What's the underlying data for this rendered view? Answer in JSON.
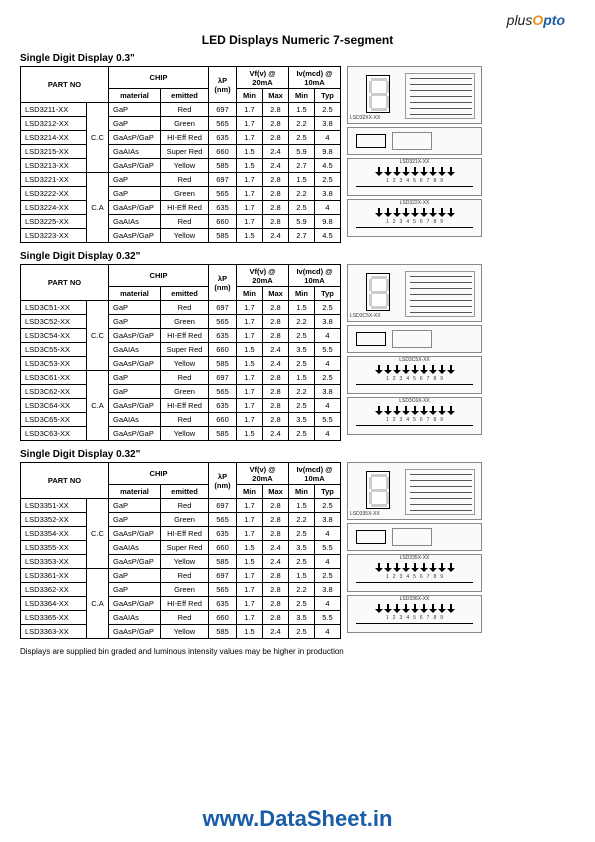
{
  "logo": {
    "plus": "plus",
    "o": "O",
    "pto": "pto"
  },
  "main_title": "LED Displays Numeric 7-segment",
  "headers": {
    "part_no": "PART NO",
    "chip": "CHIP",
    "lp": "λP (nm)",
    "vf": "Vf(v) @ 20mA",
    "iv": "Iv(mcd) @ 10mA",
    "material": "material",
    "emitted": "emitted",
    "min": "Min",
    "max": "Max",
    "typ": "Typ"
  },
  "sections": [
    {
      "title": "Single Digit Display 0.3\"",
      "groups": [
        {
          "cc": "C.C",
          "rows": [
            {
              "pn": "LSD3211-XX",
              "mat": "GaP",
              "emit": "Red",
              "lp": "697",
              "vfmin": "1.7",
              "vfmax": "2.8",
              "ivmin": "1.5",
              "ivtyp": "2.5"
            },
            {
              "pn": "LSD3212-XX",
              "mat": "GaP",
              "emit": "Green",
              "lp": "565",
              "vfmin": "1.7",
              "vfmax": "2.8",
              "ivmin": "2.2",
              "ivtyp": "3.8"
            },
            {
              "pn": "LSD3214-XX",
              "mat": "GaAsP/GaP",
              "emit": "HI-Eff Red",
              "lp": "635",
              "vfmin": "1.7",
              "vfmax": "2.8",
              "ivmin": "2.5",
              "ivtyp": "4"
            },
            {
              "pn": "LSD3215-XX",
              "mat": "GaAIAs",
              "emit": "Super Red",
              "lp": "660",
              "vfmin": "1.5",
              "vfmax": "2.4",
              "ivmin": "5.9",
              "ivtyp": "9.8"
            },
            {
              "pn": "LSD3213-XX",
              "mat": "GaAsP/GaP",
              "emit": "Yellow",
              "lp": "585",
              "vfmin": "1.5",
              "vfmax": "2.4",
              "ivmin": "2.7",
              "ivtyp": "4.5"
            }
          ]
        },
        {
          "cc": "C.A",
          "rows": [
            {
              "pn": "LSD3221-XX",
              "mat": "GaP",
              "emit": "Red",
              "lp": "697",
              "vfmin": "1.7",
              "vfmax": "2.8",
              "ivmin": "1.5",
              "ivtyp": "2.5"
            },
            {
              "pn": "LSD3222-XX",
              "mat": "GaP",
              "emit": "Green",
              "lp": "565",
              "vfmin": "1.7",
              "vfmax": "2.8",
              "ivmin": "2.2",
              "ivtyp": "3.8"
            },
            {
              "pn": "LSD3224-XX",
              "mat": "GaAsP/GaP",
              "emit": "HI-Eff Red",
              "lp": "635",
              "vfmin": "1.7",
              "vfmax": "2.8",
              "ivmin": "2.5",
              "ivtyp": "4"
            },
            {
              "pn": "LSD3225-XX",
              "mat": "GaAIAs",
              "emit": "Red",
              "lp": "660",
              "vfmin": "1.7",
              "vfmax": "2.8",
              "ivmin": "5.9",
              "ivtyp": "9.8"
            },
            {
              "pn": "LSD3223-XX",
              "mat": "GaAsP/GaP",
              "emit": "Yellow",
              "lp": "585",
              "vfmin": "1.5",
              "vfmax": "2.4",
              "ivmin": "2.7",
              "ivtyp": "4.5"
            }
          ]
        }
      ],
      "diagrams": [
        "LSD32XX-XX",
        "LSD321X-XX",
        "LSD322X-XX"
      ]
    },
    {
      "title": "Single Digit Display 0.32\"",
      "groups": [
        {
          "cc": "C.C",
          "rows": [
            {
              "pn": "LSD3C51-XX",
              "mat": "GaP",
              "emit": "Red",
              "lp": "697",
              "vfmin": "1.7",
              "vfmax": "2.8",
              "ivmin": "1.5",
              "ivtyp": "2.5"
            },
            {
              "pn": "LSD3C52-XX",
              "mat": "GaP",
              "emit": "Green",
              "lp": "565",
              "vfmin": "1.7",
              "vfmax": "2.8",
              "ivmin": "2.2",
              "ivtyp": "3.8"
            },
            {
              "pn": "LSD3C54-XX",
              "mat": "GaAsP/GaP",
              "emit": "HI-Eff Red",
              "lp": "635",
              "vfmin": "1.7",
              "vfmax": "2.8",
              "ivmin": "2.5",
              "ivtyp": "4"
            },
            {
              "pn": "LSD3C55-XX",
              "mat": "GaAIAs",
              "emit": "Super Red",
              "lp": "660",
              "vfmin": "1.5",
              "vfmax": "2.4",
              "ivmin": "3.5",
              "ivtyp": "5.5"
            },
            {
              "pn": "LSD3C53-XX",
              "mat": "GaAsP/GaP",
              "emit": "Yellow",
              "lp": "585",
              "vfmin": "1.5",
              "vfmax": "2.4",
              "ivmin": "2.5",
              "ivtyp": "4"
            }
          ]
        },
        {
          "cc": "C.A",
          "rows": [
            {
              "pn": "LSD3C61-XX",
              "mat": "GaP",
              "emit": "Red",
              "lp": "697",
              "vfmin": "1.7",
              "vfmax": "2.8",
              "ivmin": "1.5",
              "ivtyp": "2.5"
            },
            {
              "pn": "LSD3C62-XX",
              "mat": "GaP",
              "emit": "Green",
              "lp": "565",
              "vfmin": "1.7",
              "vfmax": "2.8",
              "ivmin": "2.2",
              "ivtyp": "3.8"
            },
            {
              "pn": "LSD3C64-XX",
              "mat": "GaAsP/GaP",
              "emit": "HI-Eff Red",
              "lp": "635",
              "vfmin": "1.7",
              "vfmax": "2.8",
              "ivmin": "2.5",
              "ivtyp": "4"
            },
            {
              "pn": "LSD3C65-XX",
              "mat": "GaAIAs",
              "emit": "Red",
              "lp": "660",
              "vfmin": "1.7",
              "vfmax": "2.8",
              "ivmin": "3.5",
              "ivtyp": "5.5"
            },
            {
              "pn": "LSD3C63-XX",
              "mat": "GaAsP/GaP",
              "emit": "Yellow",
              "lp": "585",
              "vfmin": "1.5",
              "vfmax": "2.4",
              "ivmin": "2.5",
              "ivtyp": "4"
            }
          ]
        }
      ],
      "diagrams": [
        "LSD3C5X-XX",
        "LSD3C5X-XX",
        "LSD3C6X-XX"
      ]
    },
    {
      "title": "Single Digit Display 0.32\"",
      "groups": [
        {
          "cc": "C.C",
          "rows": [
            {
              "pn": "LSD3351-XX",
              "mat": "GaP",
              "emit": "Red",
              "lp": "697",
              "vfmin": "1.7",
              "vfmax": "2.8",
              "ivmin": "1.5",
              "ivtyp": "2.5"
            },
            {
              "pn": "LSD3352-XX",
              "mat": "GaP",
              "emit": "Green",
              "lp": "565",
              "vfmin": "1.7",
              "vfmax": "2.8",
              "ivmin": "2.2",
              "ivtyp": "3.8"
            },
            {
              "pn": "LSD3354-XX",
              "mat": "GaAsP/GaP",
              "emit": "HI-Eff Red",
              "lp": "635",
              "vfmin": "1.7",
              "vfmax": "2.8",
              "ivmin": "2.5",
              "ivtyp": "4"
            },
            {
              "pn": "LSD3355-XX",
              "mat": "GaAIAs",
              "emit": "Super Red",
              "lp": "660",
              "vfmin": "1.5",
              "vfmax": "2.4",
              "ivmin": "3.5",
              "ivtyp": "5.5"
            },
            {
              "pn": "LSD3353-XX",
              "mat": "GaAsP/GaP",
              "emit": "Yellow",
              "lp": "585",
              "vfmin": "1.5",
              "vfmax": "2.4",
              "ivmin": "2.5",
              "ivtyp": "4"
            }
          ]
        },
        {
          "cc": "C.A",
          "rows": [
            {
              "pn": "LSD3361-XX",
              "mat": "GaP",
              "emit": "Red",
              "lp": "697",
              "vfmin": "1.7",
              "vfmax": "2.8",
              "ivmin": "1.5",
              "ivtyp": "2.5"
            },
            {
              "pn": "LSD3362-XX",
              "mat": "GaP",
              "emit": "Green",
              "lp": "565",
              "vfmin": "1.7",
              "vfmax": "2.8",
              "ivmin": "2.2",
              "ivtyp": "3.8"
            },
            {
              "pn": "LSD3364-XX",
              "mat": "GaAsP/GaP",
              "emit": "HI-Eff Red",
              "lp": "635",
              "vfmin": "1.7",
              "vfmax": "2.8",
              "ivmin": "2.5",
              "ivtyp": "4"
            },
            {
              "pn": "LSD3365-XX",
              "mat": "GaAIAs",
              "emit": "Red",
              "lp": "660",
              "vfmin": "1.7",
              "vfmax": "2.8",
              "ivmin": "3.5",
              "ivtyp": "5.5"
            },
            {
              "pn": "LSD3363-XX",
              "mat": "GaAsP/GaP",
              "emit": "Yellow",
              "lp": "585",
              "vfmin": "1.5",
              "vfmax": "2.4",
              "ivmin": "2.5",
              "ivtyp": "4"
            }
          ]
        }
      ],
      "diagrams": [
        "LSD335X-XX",
        "LSD335X-XX",
        "LSD336X-XX"
      ]
    }
  ],
  "footnote": "Displays are supplied bin graded and luminous intensity values may be higher in production",
  "watermark": "www.DataSheet.in"
}
